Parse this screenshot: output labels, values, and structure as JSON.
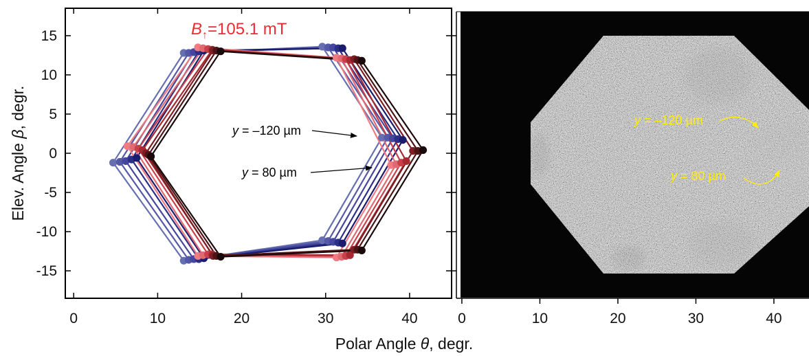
{
  "figure": {
    "shared_xlabel_prefix": "Polar Angle ",
    "shared_xlabel_symbol": "θ",
    "shared_xlabel_suffix": ", degr."
  },
  "chart_data": [
    {
      "type": "line",
      "ylabel_prefix": "Elev. Angle ",
      "ylabel_symbol": "β",
      "ylabel_suffix": ", degr.",
      "xlim": [
        -1,
        45
      ],
      "ylim": [
        -18.5,
        18.5
      ],
      "xticks": [
        0,
        10,
        20,
        30,
        40
      ],
      "yticks": [
        15,
        10,
        5,
        0,
        -5,
        -10,
        -15
      ],
      "ytick_labels": [
        "15",
        "10",
        "5",
        "0",
        "-5",
        "-10",
        "-15"
      ],
      "field_label": {
        "symbol": "B",
        "sub": "↑",
        "text": "=105.1 mT",
        "color": "#ee2a35"
      },
      "annotations": [
        {
          "prefix": "y",
          "text": " = –120 µm"
        },
        {
          "prefix": "y",
          "text": " =  80 µm"
        }
      ],
      "series": [
        {
          "color": "#6670b1",
          "values": [
            [
              13.1,
              12.8
            ],
            [
              29.6,
              13.6
            ],
            [
              36.7,
              2.0
            ],
            [
              29.6,
              -11.1
            ],
            [
              13.1,
              -13.7
            ],
            [
              4.7,
              -1.2
            ]
          ]
        },
        {
          "color": "#5558a6",
          "values": [
            [
              13.7,
              12.8
            ],
            [
              30.3,
              13.5
            ],
            [
              37.4,
              2.0
            ],
            [
              30.3,
              -11.2
            ],
            [
              13.7,
              -13.6
            ],
            [
              5.5,
              -1.1
            ]
          ]
        },
        {
          "color": "#44479d",
          "values": [
            [
              14.3,
              12.9
            ],
            [
              30.9,
              13.5
            ],
            [
              38.0,
              1.9
            ],
            [
              30.9,
              -11.3
            ],
            [
              14.3,
              -13.5
            ],
            [
              6.2,
              -1.0
            ]
          ]
        },
        {
          "color": "#2c2f87",
          "values": [
            [
              14.9,
              13.0
            ],
            [
              31.5,
              13.4
            ],
            [
              38.6,
              1.8
            ],
            [
              31.5,
              -11.4
            ],
            [
              14.9,
              -13.5
            ],
            [
              6.9,
              -0.8
            ]
          ]
        },
        {
          "color": "#1a1c6e",
          "values": [
            [
              15.5,
              13.1
            ],
            [
              32.0,
              13.4
            ],
            [
              39.2,
              1.7
            ],
            [
              32.0,
              -11.5
            ],
            [
              15.5,
              -13.4
            ],
            [
              7.5,
              -0.6
            ]
          ]
        },
        {
          "color": "#ef7c82",
          "values": [
            [
              14.8,
              13.5
            ],
            [
              31.3,
              12.2
            ],
            [
              37.8,
              -1.5
            ],
            [
              31.3,
              -13.3
            ],
            [
              14.8,
              -13.1
            ],
            [
              6.4,
              0.9
            ]
          ]
        },
        {
          "color": "#e06a72",
          "values": [
            [
              15.4,
              13.4
            ],
            [
              31.9,
              12.1
            ],
            [
              38.4,
              -1.4
            ],
            [
              31.9,
              -13.2
            ],
            [
              15.4,
              -13.0
            ],
            [
              7.1,
              0.8
            ]
          ]
        },
        {
          "color": "#c9404a",
          "values": [
            [
              16.0,
              13.3
            ],
            [
              32.4,
              12.0
            ],
            [
              39.0,
              -1.2
            ],
            [
              32.4,
              -13.1
            ],
            [
              16.0,
              -12.9
            ],
            [
              7.7,
              0.6
            ]
          ]
        },
        {
          "color": "#a72a33",
          "values": [
            [
              16.5,
              13.2
            ],
            [
              32.9,
              11.9
            ],
            [
              39.6,
              -1.0
            ],
            [
              32.9,
              -13.0
            ],
            [
              16.5,
              -12.9
            ],
            [
              8.2,
              0.4
            ]
          ]
        },
        {
          "color": "#7c1e24",
          "values": [
            [
              16.6,
              13.1
            ],
            [
              33.4,
              12.0
            ],
            [
              40.4,
              0.3
            ],
            [
              33.4,
              -12.3
            ],
            [
              16.6,
              -13.1
            ],
            [
              8.6,
              0.0
            ]
          ]
        },
        {
          "color": "#4d1416",
          "values": [
            [
              17.0,
              13.1
            ],
            [
              33.8,
              11.9
            ],
            [
              41.0,
              0.3
            ],
            [
              33.8,
              -12.3
            ],
            [
              17.0,
              -13.1
            ],
            [
              8.9,
              -0.2
            ]
          ]
        },
        {
          "color": "#1a0a0b",
          "values": [
            [
              17.5,
              13.0
            ],
            [
              34.3,
              11.8
            ],
            [
              41.6,
              0.4
            ],
            [
              34.3,
              -12.4
            ],
            [
              17.5,
              -13.2
            ],
            [
              9.2,
              -0.4
            ]
          ]
        }
      ]
    },
    {
      "type": "heatmap",
      "xlim": [
        -0.7,
        44.5
      ],
      "xticks": [
        0,
        10,
        20,
        30,
        40
      ],
      "annotations": [
        {
          "prefix": "y",
          "text": " = –120 µm",
          "color": "#ffee00"
        },
        {
          "prefix": "y",
          "text": " =  80 µm",
          "color": "#ffee00"
        }
      ]
    }
  ]
}
